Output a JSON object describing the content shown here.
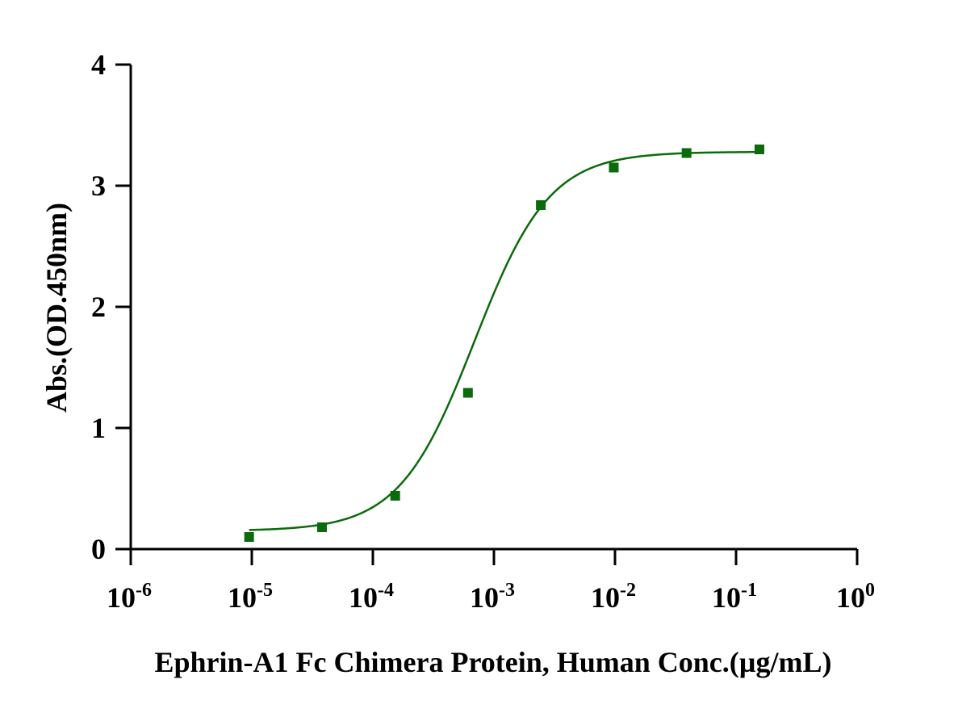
{
  "chart_data": {
    "type": "scatter",
    "title": "",
    "xlabel": "Ephrin-A1 Fc Chimera Protein, Human  Conc.(µg/mL)",
    "ylabel": "Abs.(OD.450nm)",
    "x_scale": "log10",
    "xlim": [
      1e-06,
      1
    ],
    "ylim": [
      0,
      4
    ],
    "x_ticks": [
      {
        "base": "10",
        "exp": "-6",
        "value": 1e-06
      },
      {
        "base": "10",
        "exp": "-5",
        "value": 1e-05
      },
      {
        "base": "10",
        "exp": "-4",
        "value": 0.0001
      },
      {
        "base": "10",
        "exp": "-3",
        "value": 0.001
      },
      {
        "base": "10",
        "exp": "-2",
        "value": 0.01
      },
      {
        "base": "10",
        "exp": "-1",
        "value": 0.1
      },
      {
        "base": "10",
        "exp": "0",
        "value": 1
      }
    ],
    "y_ticks": [
      "0",
      "1",
      "2",
      "3",
      "4"
    ],
    "grid": false,
    "legend": "none",
    "color": "#0b6a0b",
    "series": [
      {
        "marker": "square",
        "points": [
          {
            "x": 9.5e-06,
            "y": 0.1
          },
          {
            "x": 3.8e-05,
            "y": 0.18
          },
          {
            "x": 0.000153,
            "y": 0.44
          },
          {
            "x": 0.00061,
            "y": 1.29
          },
          {
            "x": 0.00244,
            "y": 2.84
          },
          {
            "x": 0.00977,
            "y": 3.15
          },
          {
            "x": 0.039,
            "y": 3.27
          },
          {
            "x": 0.156,
            "y": 3.3
          }
        ]
      }
    ],
    "fit_curve": {
      "model": "4PL",
      "bottom": 0.15,
      "top": 3.28,
      "ec50": 0.00069,
      "hill": 1.4,
      "x_range": [
        9.5e-06,
        0.156
      ]
    }
  }
}
